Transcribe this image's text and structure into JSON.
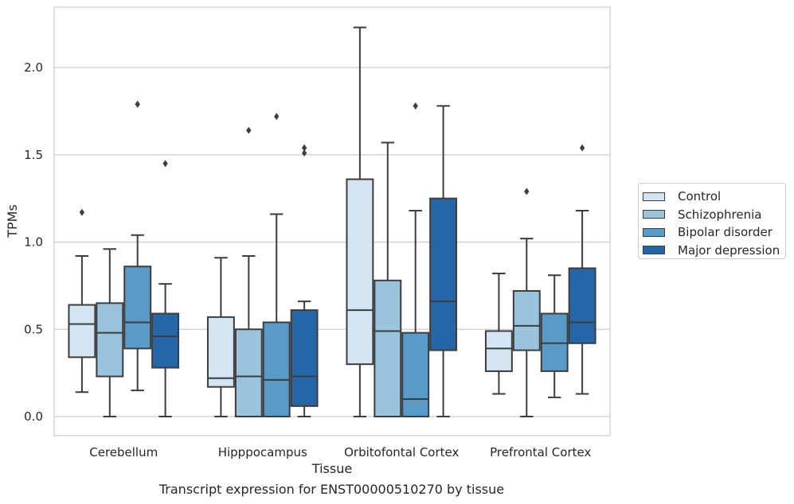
{
  "caption": "Transcript expression for ENST00000510270 by tissue",
  "chart_data": {
    "type": "box",
    "xlabel": "Tissue",
    "ylabel": "TPMs",
    "ylim": [
      -0.11,
      2.35
    ],
    "yticks": [
      0.0,
      0.5,
      1.0,
      1.5,
      2.0
    ],
    "ytick_labels": [
      "0.0",
      "0.5",
      "1.0",
      "1.5",
      "2.0"
    ],
    "grid": "horizontal",
    "legend_position": "right-outside",
    "categories": [
      "Cerebellum",
      "Hipppocampus",
      "Orbitofontal Cortex",
      "Prefrontal Cortex"
    ],
    "series": [
      {
        "name": "Control",
        "color": "#d3e4f3",
        "boxes": [
          {
            "whislo": 0.14,
            "q1": 0.34,
            "med": 0.53,
            "q3": 0.64,
            "whishi": 0.92,
            "fliers": [
              1.17
            ]
          },
          {
            "whislo": 0.0,
            "q1": 0.17,
            "med": 0.22,
            "q3": 0.57,
            "whishi": 0.91,
            "fliers": []
          },
          {
            "whislo": 0.0,
            "q1": 0.3,
            "med": 0.61,
            "q3": 1.36,
            "whishi": 2.23,
            "fliers": []
          },
          {
            "whislo": 0.13,
            "q1": 0.26,
            "med": 0.39,
            "q3": 0.49,
            "whishi": 0.82,
            "fliers": []
          }
        ]
      },
      {
        "name": "Schizophrenia",
        "color": "#9ac3dd",
        "boxes": [
          {
            "whislo": 0.0,
            "q1": 0.23,
            "med": 0.48,
            "q3": 0.65,
            "whishi": 0.96,
            "fliers": []
          },
          {
            "whislo": 0.0,
            "q1": 0.0,
            "med": 0.23,
            "q3": 0.5,
            "whishi": 0.92,
            "fliers": [
              1.64
            ]
          },
          {
            "whislo": 0.0,
            "q1": 0.0,
            "med": 0.49,
            "q3": 0.78,
            "whishi": 1.57,
            "fliers": []
          },
          {
            "whislo": 0.0,
            "q1": 0.38,
            "med": 0.52,
            "q3": 0.72,
            "whishi": 1.02,
            "fliers": [
              1.29
            ]
          }
        ]
      },
      {
        "name": "Bipolar disorder",
        "color": "#5a9ac8",
        "boxes": [
          {
            "whislo": 0.15,
            "q1": 0.39,
            "med": 0.54,
            "q3": 0.86,
            "whishi": 1.04,
            "fliers": [
              1.79
            ]
          },
          {
            "whislo": 0.0,
            "q1": 0.0,
            "med": 0.21,
            "q3": 0.54,
            "whishi": 1.16,
            "fliers": [
              1.72
            ]
          },
          {
            "whislo": 0.0,
            "q1": 0.0,
            "med": 0.1,
            "q3": 0.48,
            "whishi": 1.18,
            "fliers": [
              1.78
            ]
          },
          {
            "whislo": 0.11,
            "q1": 0.26,
            "med": 0.42,
            "q3": 0.59,
            "whishi": 0.81,
            "fliers": []
          }
        ]
      },
      {
        "name": "Major depression",
        "color": "#2566a8",
        "boxes": [
          {
            "whislo": 0.0,
            "q1": 0.28,
            "med": 0.46,
            "q3": 0.59,
            "whishi": 0.76,
            "fliers": [
              1.45
            ]
          },
          {
            "whislo": 0.0,
            "q1": 0.06,
            "med": 0.23,
            "q3": 0.61,
            "whishi": 0.66,
            "fliers": [
              1.51,
              1.54
            ]
          },
          {
            "whislo": 0.0,
            "q1": 0.38,
            "med": 0.66,
            "q3": 1.25,
            "whishi": 1.78,
            "fliers": []
          },
          {
            "whislo": 0.13,
            "q1": 0.42,
            "med": 0.54,
            "q3": 0.85,
            "whishi": 1.18,
            "fliers": [
              1.54
            ]
          }
        ]
      }
    ]
  }
}
